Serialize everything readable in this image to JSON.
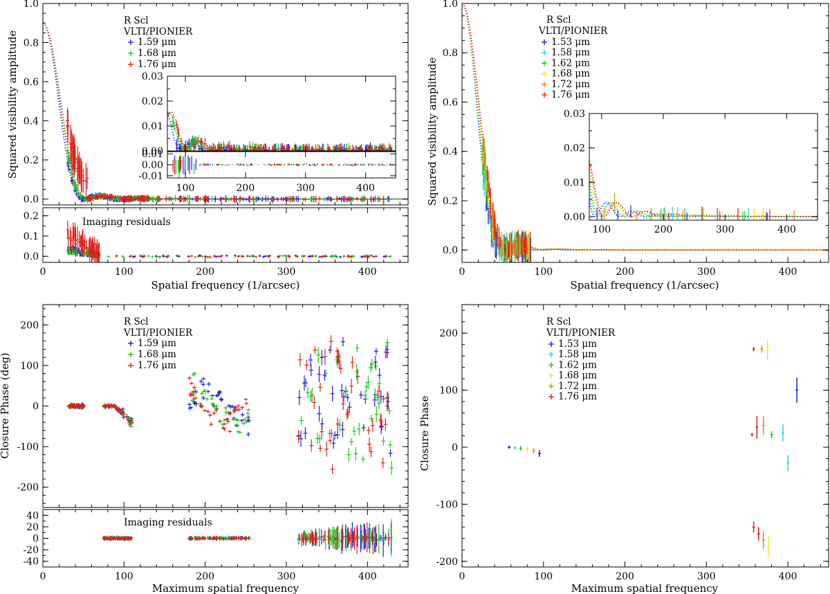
{
  "chart_data": [
    {
      "id": "tl",
      "type": "scatter",
      "title": "",
      "xlabel": "Spatial frequency (1/arcsec)",
      "ylabel": "Squared visibility amplitude",
      "xlim": [
        0,
        450
      ],
      "ylim": [
        -0.03,
        1.0
      ],
      "xticks": [
        0,
        100,
        200,
        300,
        400
      ],
      "yticks": [
        0.0,
        0.2,
        0.4,
        0.6,
        0.8,
        1.0
      ],
      "ytick_labels": [
        "0.0",
        "0.2",
        "0.4",
        "0.6",
        "0.8",
        "1.0"
      ],
      "legend": {
        "target": "R Scl",
        "instrument": "VLTI/PIONIER",
        "entries": [
          "1.59 μm",
          "1.68 μm",
          "1.76 μm"
        ],
        "colors": [
          "#1f1fd6",
          "#22c21e",
          "#e0201a"
        ]
      },
      "model_scale": 0.9,
      "series": [
        {
          "name": "1.59 μm",
          "color": "#1f1fd6",
          "freq_factor": 1.07
        },
        {
          "name": "1.68 μm",
          "color": "#22c21e",
          "freq_factor": 1.0
        },
        {
          "name": "1.76 μm",
          "color": "#e0201a",
          "freq_factor": 0.95
        }
      ],
      "inset_v2": {
        "xlim": [
          70,
          450
        ],
        "ylim": [
          0.0,
          0.03
        ],
        "yticks": [
          0.0,
          0.01,
          0.02,
          0.03
        ],
        "ytick_labels": [
          "0.00",
          "0.01",
          "0.02",
          "0.03"
        ]
      },
      "inset_resid": {
        "xlim": [
          70,
          450
        ],
        "ylim": [
          -0.012,
          0.012
        ],
        "xticks": [
          100,
          200,
          300,
          400
        ],
        "yticks": [
          -0.01,
          0.0,
          0.01
        ],
        "ytick_labels": [
          "-0.01",
          "0.00",
          "0.01"
        ]
      },
      "residual_panel": {
        "label": "Imaging residuals",
        "ylim": [
          -0.03,
          0.24
        ],
        "yticks": [
          0.0,
          0.1,
          0.2
        ],
        "ytick_labels": [
          "0.0",
          "0.1",
          "0.2"
        ]
      }
    },
    {
      "id": "tr",
      "type": "scatter",
      "title": "",
      "xlabel": "Spatial frequency (1/arcsec)",
      "ylabel": "Squared visibility amplitude",
      "xlim": [
        0,
        450
      ],
      "ylim": [
        -0.05,
        1.0
      ],
      "xticks": [
        0,
        100,
        200,
        300,
        400
      ],
      "yticks": [
        0.0,
        0.2,
        0.4,
        0.6,
        0.8,
        1.0
      ],
      "ytick_labels": [
        "0.0",
        "0.2",
        "0.4",
        "0.6",
        "0.8",
        "1.0"
      ],
      "legend": {
        "target": "R Scl",
        "instrument": "VLTI/PIONIER",
        "entries": [
          "1.53 μm",
          "1.58 μm",
          "1.62 μm",
          "1.68 μm",
          "1.72 μm",
          "1.76 μm"
        ],
        "colors": [
          "#1f1fd6",
          "#22d6e6",
          "#22c21e",
          "#f2e21a",
          "#e08a16",
          "#e0201a"
        ]
      },
      "series": [
        {
          "name": "1.53 μm",
          "color": "#1f1fd6",
          "freq_factor": 1.1
        },
        {
          "name": "1.58 μm",
          "color": "#22d6e6",
          "freq_factor": 1.06
        },
        {
          "name": "1.62 μm",
          "color": "#22c21e",
          "freq_factor": 1.03
        },
        {
          "name": "1.68 μm",
          "color": "#f2e21a",
          "freq_factor": 1.0
        },
        {
          "name": "1.72 μm",
          "color": "#e08a16",
          "freq_factor": 0.97
        },
        {
          "name": "1.76 μm",
          "color": "#e0201a",
          "freq_factor": 0.95
        }
      ],
      "inset_v2": {
        "xlim": [
          80,
          450
        ],
        "ylim": [
          -0.001,
          0.03
        ],
        "xticks": [
          100,
          200,
          300,
          400
        ],
        "yticks": [
          0.0,
          0.01,
          0.02,
          0.03
        ],
        "ytick_labels": [
          "0.00",
          "0.01",
          "0.02",
          "0.03"
        ]
      }
    },
    {
      "id": "bl",
      "type": "scatter",
      "title": "",
      "xlabel": "Maximum spatial frequency",
      "ylabel": "Closure Phase (deg)",
      "xlim": [
        0,
        450
      ],
      "ylim": [
        -250,
        250
      ],
      "xticks": [
        0,
        100,
        200,
        300,
        400
      ],
      "yticks": [
        -200,
        -100,
        0,
        100,
        200
      ],
      "ytick_labels": [
        "-200",
        "-100",
        "0",
        "100",
        "200"
      ],
      "legend": {
        "target": "R Scl",
        "instrument": "VLTI/PIONIER",
        "entries": [
          "1.59 μm",
          "1.68 μm",
          "1.76 μm"
        ],
        "colors": [
          "#1f1fd6",
          "#22c21e",
          "#e0201a"
        ]
      },
      "series": [
        {
          "name": "1.59 μm",
          "color": "#1f1fd6"
        },
        {
          "name": "1.68 μm",
          "color": "#22c21e"
        },
        {
          "name": "1.76 μm",
          "color": "#e0201a"
        }
      ],
      "residual_panel": {
        "label": "Imaging residuals",
        "ylim": [
          -50,
          50
        ],
        "yticks": [
          -40,
          -20,
          0,
          20,
          40
        ],
        "ytick_labels": [
          "-40",
          "-20",
          "0",
          "20",
          "40"
        ]
      }
    },
    {
      "id": "br",
      "type": "scatter",
      "title": "",
      "xlabel": "Maximum spatial frequency",
      "ylabel": "Closure Phase",
      "xlim": [
        0,
        450
      ],
      "ylim": [
        -210,
        250
      ],
      "xticks": [
        0,
        100,
        200,
        300,
        400
      ],
      "yticks": [
        -200,
        -100,
        0,
        100,
        200
      ],
      "ytick_labels": [
        "-200",
        "-100",
        "0",
        "100",
        "200"
      ],
      "legend": {
        "target": "R Scl",
        "instrument": "VLTI/PIONIER",
        "entries": [
          "1.53 μm",
          "1.58 μm",
          "1.62 μm",
          "1.68 μm",
          "1.72 μm",
          "1.76 μm"
        ],
        "colors": [
          "#1f1fd6",
          "#22d6e6",
          "#22c21e",
          "#f2e21a",
          "#e08a16",
          "#e0201a"
        ]
      },
      "series": [
        {
          "name": "1.53 μm",
          "color": "#1f1fd6"
        },
        {
          "name": "1.58 μm",
          "color": "#22d6e6"
        },
        {
          "name": "1.62 μm",
          "color": "#22c21e"
        },
        {
          "name": "1.68 μm",
          "color": "#f2e21a"
        },
        {
          "name": "1.72 μm",
          "color": "#e08a16"
        },
        {
          "name": "1.76 μm",
          "color": "#e0201a"
        }
      ],
      "points": [
        {
          "x": 58,
          "y": 0,
          "err": 3,
          "series": 0
        },
        {
          "x": 65,
          "y": -1,
          "err": 3,
          "series": 1
        },
        {
          "x": 72,
          "y": -2,
          "err": 4,
          "series": 2
        },
        {
          "x": 80,
          "y": -3,
          "err": 4,
          "series": 3
        },
        {
          "x": 88,
          "y": -6,
          "err": 5,
          "series": 4
        },
        {
          "x": 95,
          "y": -11,
          "err": 6,
          "series": 0
        },
        {
          "x": 356,
          "y": 22,
          "err": 3,
          "series": 5
        },
        {
          "x": 358,
          "y": 172,
          "err": 4,
          "series": 5
        },
        {
          "x": 362,
          "y": 35,
          "err": 20,
          "series": 5
        },
        {
          "x": 368,
          "y": 172,
          "err": 6,
          "series": 4
        },
        {
          "x": 370,
          "y": 38,
          "err": 16,
          "series": 4
        },
        {
          "x": 375,
          "y": 170,
          "err": 18,
          "series": 3
        },
        {
          "x": 380,
          "y": 22,
          "err": 6,
          "series": 2
        },
        {
          "x": 394,
          "y": 25,
          "err": 15,
          "series": 1
        },
        {
          "x": 400,
          "y": -28,
          "err": 14,
          "series": 1
        },
        {
          "x": 411,
          "y": 100,
          "err": 22,
          "series": 0
        },
        {
          "x": 358,
          "y": -140,
          "err": 10,
          "series": 5
        },
        {
          "x": 364,
          "y": -152,
          "err": 12,
          "series": 5
        },
        {
          "x": 370,
          "y": -163,
          "err": 16,
          "series": 4
        },
        {
          "x": 376,
          "y": -175,
          "err": 18,
          "series": 3
        }
      ]
    }
  ]
}
